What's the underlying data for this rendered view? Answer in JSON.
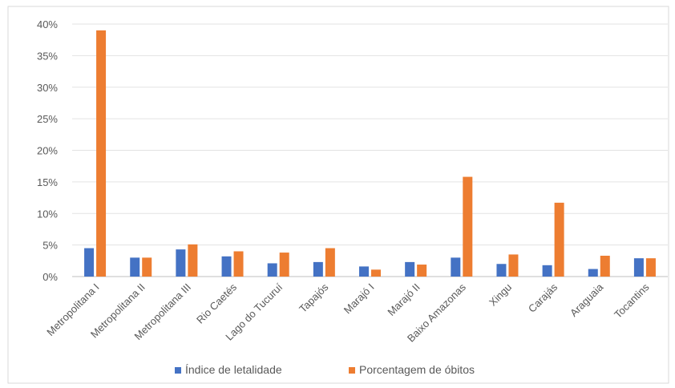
{
  "chart_data": {
    "type": "bar",
    "categories": [
      "Metropolitana I",
      "Metropolitana II",
      "Metropolitana III",
      "Rio Caetés",
      "Lago do Tucuruí",
      "Tapajós",
      "Marajó I",
      "Marajó II",
      "Baixo Amazonas",
      "Xingu",
      "Carajás",
      "Araguaia",
      "Tocantins"
    ],
    "series": [
      {
        "name": "Índice de letalidade",
        "color": "#4472C4",
        "values": [
          4.5,
          3.0,
          4.3,
          3.2,
          2.1,
          2.3,
          1.6,
          2.3,
          3.0,
          2.0,
          1.8,
          1.2,
          2.9
        ]
      },
      {
        "name": "Porcentagem de óbitos",
        "color": "#ED7D31",
        "values": [
          39.0,
          3.0,
          5.1,
          4.0,
          3.8,
          4.5,
          1.1,
          1.9,
          15.8,
          3.5,
          11.7,
          3.3,
          2.9
        ]
      }
    ],
    "xlabel": "",
    "ylabel": "",
    "ylim": [
      0,
      40
    ],
    "yticks": [
      "0%",
      "5%",
      "10%",
      "15%",
      "20%",
      "25%",
      "30%",
      "35%",
      "40%"
    ],
    "grid": true,
    "legend_position": "bottom"
  }
}
